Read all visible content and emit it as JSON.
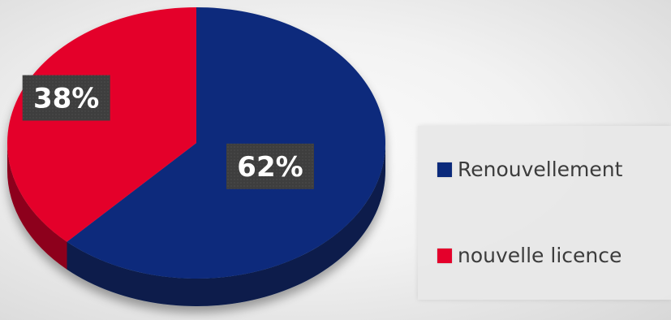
{
  "chart_data": {
    "type": "pie",
    "title": "",
    "categories": [
      "Renouvellement",
      "nouvelle licence"
    ],
    "values": [
      62,
      38
    ],
    "data_labels": [
      "62%",
      "38%"
    ],
    "colors": [
      "#0b2a7b",
      "#e4002b"
    ],
    "legend_position": "right",
    "style": "3d-tilted"
  }
}
